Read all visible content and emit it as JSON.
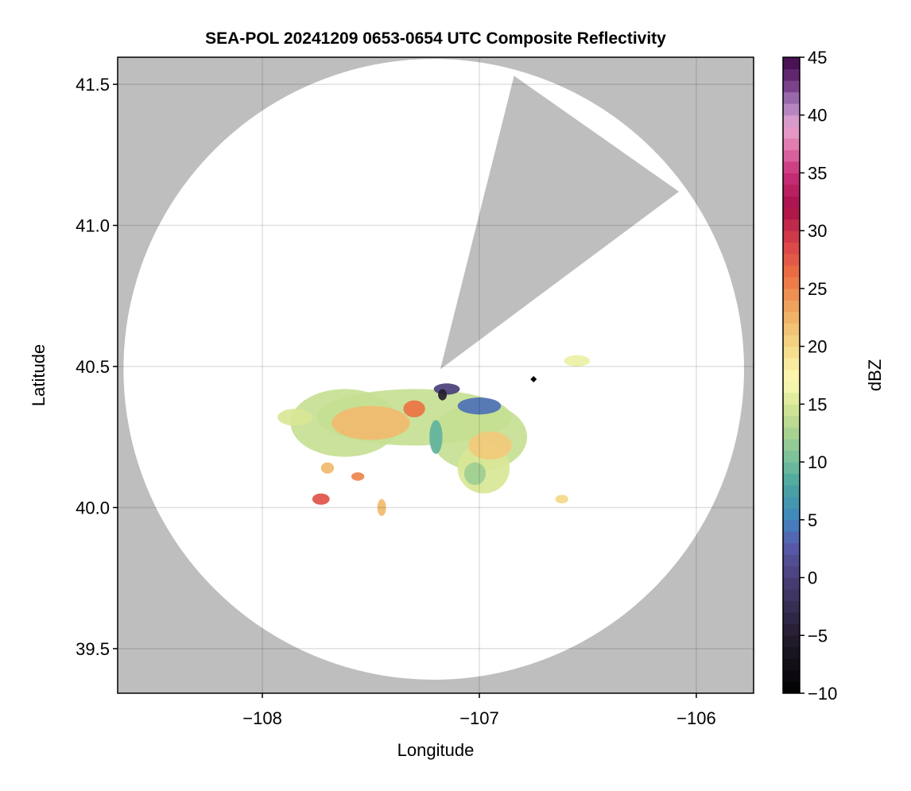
{
  "chart_data": {
    "type": "heatmap",
    "title": "SEA-POL 20241209 0653-0654 UTC Composite Reflectivity",
    "xlabel": "Longitude",
    "ylabel": "Latitude",
    "xlim": [
      -108.667,
      -105.736
    ],
    "ylim": [
      39.342,
      41.596
    ],
    "xticks": [
      -108,
      -107,
      -106
    ],
    "xtick_labels": [
      "−108",
      "−107",
      "−106"
    ],
    "yticks": [
      39.5,
      40.0,
      40.5,
      41.0,
      41.5
    ],
    "ytick_labels": [
      "39.5",
      "40.0",
      "40.5",
      "41.0",
      "41.5"
    ],
    "grid": true,
    "background_color": "#bebebe",
    "coverage_color": "#ffffff",
    "radar_center": {
      "lon": -107.21,
      "lat": 40.49
    },
    "coverage_radius_deg": {
      "lon": 1.43,
      "lat": 1.1
    },
    "blocked_sector": [
      [
        -107.18,
        40.49
      ],
      [
        -106.84,
        41.53
      ],
      [
        -106.08,
        41.12
      ]
    ],
    "marker": {
      "lon": -106.75,
      "lat": 40.455,
      "shape": "diamond",
      "color": "#000000"
    },
    "echoes": [
      {
        "lon": -107.3,
        "lat": 40.32,
        "dlon": 0.45,
        "dlat": 0.1,
        "dbz": 14
      },
      {
        "lon": -107.62,
        "lat": 40.3,
        "dlon": 0.25,
        "dlat": 0.12,
        "dbz": 14
      },
      {
        "lon": -107.0,
        "lat": 40.25,
        "dlon": 0.22,
        "dlat": 0.12,
        "dbz": 14
      },
      {
        "lon": -106.98,
        "lat": 40.14,
        "dlon": 0.12,
        "dlat": 0.09,
        "dbz": 15
      },
      {
        "lon": -107.85,
        "lat": 40.32,
        "dlon": 0.08,
        "dlat": 0.03,
        "dbz": 15
      },
      {
        "lon": -107.5,
        "lat": 40.3,
        "dlon": 0.18,
        "dlat": 0.06,
        "dbz": 22
      },
      {
        "lon": -106.95,
        "lat": 40.22,
        "dlon": 0.1,
        "dlat": 0.05,
        "dbz": 21
      },
      {
        "lon": -107.3,
        "lat": 40.35,
        "dlon": 0.05,
        "dlat": 0.03,
        "dbz": 26
      },
      {
        "lon": -107.2,
        "lat": 40.25,
        "dlon": 0.03,
        "dlat": 0.06,
        "dbz": 9
      },
      {
        "lon": -107.02,
        "lat": 40.12,
        "dlon": 0.05,
        "dlat": 0.04,
        "dbz": 12
      },
      {
        "lon": -107.0,
        "lat": 40.36,
        "dlon": 0.1,
        "dlat": 0.03,
        "dbz": 4
      },
      {
        "lon": -107.15,
        "lat": 40.42,
        "dlon": 0.06,
        "dlat": 0.02,
        "dbz": 0
      },
      {
        "lon": -107.17,
        "lat": 40.4,
        "dlon": 0.02,
        "dlat": 0.02,
        "dbz": -5
      },
      {
        "lon": -107.73,
        "lat": 40.03,
        "dlon": 0.04,
        "dlat": 0.02,
        "dbz": 28
      },
      {
        "lon": -107.45,
        "lat": 40.0,
        "dlon": 0.02,
        "dlat": 0.03,
        "dbz": 22
      },
      {
        "lon": -107.56,
        "lat": 40.11,
        "dlon": 0.03,
        "dlat": 0.015,
        "dbz": 25
      },
      {
        "lon": -107.7,
        "lat": 40.14,
        "dlon": 0.03,
        "dlat": 0.02,
        "dbz": 22
      },
      {
        "lon": -106.62,
        "lat": 40.03,
        "dlon": 0.03,
        "dlat": 0.015,
        "dbz": 20
      },
      {
        "lon": -106.55,
        "lat": 40.52,
        "dlon": 0.06,
        "dlat": 0.02,
        "dbz": 16
      }
    ],
    "colorbar": {
      "label": "dBZ",
      "range": [
        -10,
        45
      ],
      "ticks": [
        -10,
        -5,
        0,
        5,
        10,
        15,
        20,
        25,
        30,
        35,
        40,
        45
      ],
      "tick_labels": [
        "−10",
        "−5",
        "0",
        "5",
        "10",
        "15",
        "20",
        "25",
        "30",
        "35",
        "40",
        "45"
      ],
      "stops": [
        [
          -10,
          "#000000"
        ],
        [
          -5,
          "#231d2e"
        ],
        [
          0,
          "#4a3f7a"
        ],
        [
          3,
          "#5a5cae"
        ],
        [
          5,
          "#3f86c0"
        ],
        [
          8,
          "#4aa5a0"
        ],
        [
          10,
          "#73be9c"
        ],
        [
          13,
          "#b3d68f"
        ],
        [
          15,
          "#d8e796"
        ],
        [
          17,
          "#fcfab4"
        ],
        [
          20,
          "#f3d987"
        ],
        [
          23,
          "#f0ab62"
        ],
        [
          26,
          "#ec7343"
        ],
        [
          29,
          "#d8414a"
        ],
        [
          32,
          "#a8104a"
        ],
        [
          35,
          "#c8307a"
        ],
        [
          37,
          "#e070a8"
        ],
        [
          39,
          "#e8a4d0"
        ],
        [
          41,
          "#a77bbb"
        ],
        [
          43,
          "#6b2f7a"
        ],
        [
          45,
          "#3d0a4a"
        ]
      ]
    }
  }
}
